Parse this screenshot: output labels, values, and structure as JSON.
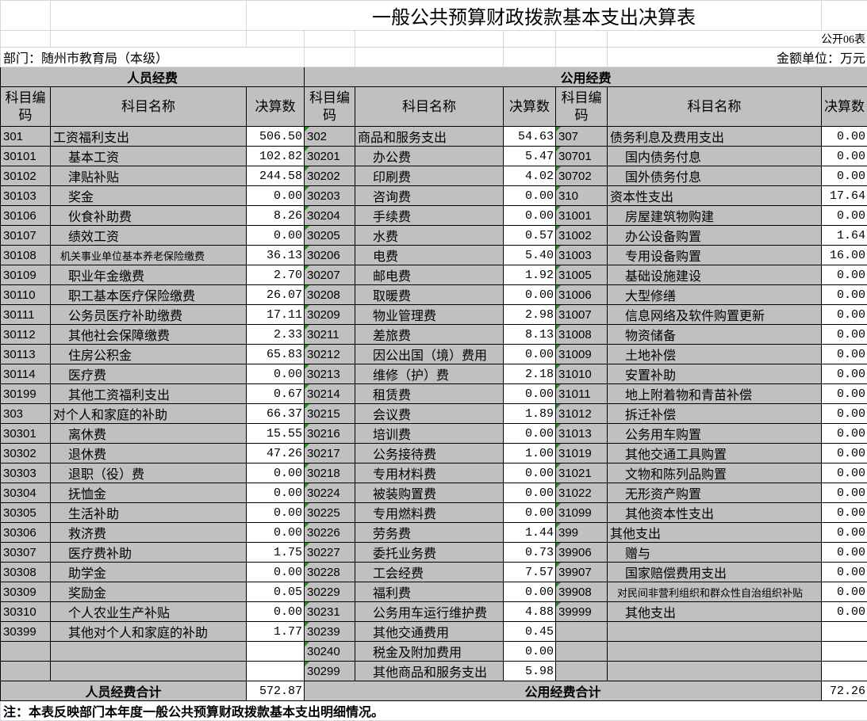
{
  "title": "一般公共预算财政拨款基本支出决算表",
  "form_no": "公开06表",
  "department": "部门：随州市教育局（本级）",
  "unit": "金额单位：万元",
  "sections": {
    "personnel": "人员经费",
    "public": "公用经费"
  },
  "headers": {
    "code": "科目编码",
    "name": "科目名称",
    "amount": "决算数"
  },
  "rows": [
    [
      "301",
      "工资福利支出",
      "506.50",
      "302",
      "商品和服务支出",
      "54.63",
      "307",
      "债务利息及费用支出",
      "0.00"
    ],
    [
      "30101",
      "基本工资",
      "102.82",
      "30201",
      "办公费",
      "5.47",
      "30701",
      "国内债务付息",
      "0.00"
    ],
    [
      "30102",
      "津贴补贴",
      "244.58",
      "30202",
      "印刷费",
      "4.02",
      "30702",
      "国外债务付息",
      "0.00"
    ],
    [
      "30103",
      "奖金",
      "0.00",
      "30203",
      "咨询费",
      "0.00",
      "310",
      "资本性支出",
      "17.64"
    ],
    [
      "30106",
      "伙食补助费",
      "8.26",
      "30204",
      "手续费",
      "0.00",
      "31001",
      "房屋建筑物购建",
      "0.00"
    ],
    [
      "30107",
      "绩效工资",
      "0.00",
      "30205",
      "水费",
      "0.57",
      "31002",
      "办公设备购置",
      "1.64"
    ],
    [
      "30108",
      "机关事业单位基本养老保险缴费",
      "36.13",
      "30206",
      "电费",
      "5.40",
      "31003",
      "专用设备购置",
      "16.00"
    ],
    [
      "30109",
      "职业年金缴费",
      "2.70",
      "30207",
      "邮电费",
      "1.92",
      "31005",
      "基础设施建设",
      "0.00"
    ],
    [
      "30110",
      "职工基本医疗保险缴费",
      "26.07",
      "30208",
      "取暖费",
      "0.00",
      "31006",
      "大型修缮",
      "0.00"
    ],
    [
      "30111",
      "公务员医疗补助缴费",
      "17.11",
      "30209",
      "物业管理费",
      "2.98",
      "31007",
      "信息网络及软件购置更新",
      "0.00"
    ],
    [
      "30112",
      "其他社会保障缴费",
      "2.33",
      "30211",
      "差旅费",
      "8.13",
      "31008",
      "物资储备",
      "0.00"
    ],
    [
      "30113",
      "住房公积金",
      "65.83",
      "30212",
      "因公出国（境）费用",
      "0.00",
      "31009",
      "土地补偿",
      "0.00"
    ],
    [
      "30114",
      "医疗费",
      "0.00",
      "30213",
      "维修（护）费",
      "2.18",
      "31010",
      "安置补助",
      "0.00"
    ],
    [
      "30199",
      "其他工资福利支出",
      "0.67",
      "30214",
      "租赁费",
      "0.00",
      "31011",
      "地上附着物和青苗补偿",
      "0.00"
    ],
    [
      "303",
      "对个人和家庭的补助",
      "66.37",
      "30215",
      "会议费",
      "1.89",
      "31012",
      "拆迁补偿",
      "0.00"
    ],
    [
      "30301",
      "离休费",
      "15.55",
      "30216",
      "培训费",
      "0.00",
      "31013",
      "公务用车购置",
      "0.00"
    ],
    [
      "30302",
      "退休费",
      "47.26",
      "30217",
      "公务接待费",
      "1.00",
      "31019",
      "其他交通工具购置",
      "0.00"
    ],
    [
      "30303",
      "退职（役）费",
      "0.00",
      "30218",
      "专用材料费",
      "0.00",
      "31021",
      "文物和陈列品购置",
      "0.00"
    ],
    [
      "30304",
      "抚恤金",
      "0.00",
      "30224",
      "被装购置费",
      "0.00",
      "31022",
      "无形资产购置",
      "0.00"
    ],
    [
      "30305",
      "生活补助",
      "0.00",
      "30225",
      "专用燃料费",
      "0.00",
      "31099",
      "其他资本性支出",
      "0.00"
    ],
    [
      "30306",
      "救济费",
      "0.00",
      "30226",
      "劳务费",
      "1.44",
      "399",
      "其他支出",
      "0.00"
    ],
    [
      "30307",
      "医疗费补助",
      "1.75",
      "30227",
      "委托业务费",
      "0.73",
      "39906",
      "赠与",
      "0.00"
    ],
    [
      "30308",
      "助学金",
      "0.00",
      "30228",
      "工会经费",
      "7.57",
      "39907",
      "国家赔偿费用支出",
      "0.00"
    ],
    [
      "30309",
      "奖励金",
      "0.05",
      "30229",
      "福利费",
      "0.00",
      "39908",
      "对民间非营利组织和群众性自治组织补贴",
      "0.00"
    ],
    [
      "30310",
      "个人农业生产补贴",
      "0.00",
      "30231",
      "公务用车运行维护费",
      "4.88",
      "39999",
      "其他支出",
      "0.00"
    ],
    [
      "30399",
      "其他对个人和家庭的补助",
      "1.77",
      "30239",
      "其他交通费用",
      "0.45",
      "",
      "",
      ""
    ],
    [
      "",
      "",
      "",
      "30240",
      "税金及附加费用",
      "0.00",
      "",
      "",
      ""
    ],
    [
      "",
      "",
      "",
      "30299",
      "其他商品和服务支出",
      "5.98",
      "",
      "",
      ""
    ]
  ],
  "totals": {
    "personnel_label": "人员经费合计",
    "personnel_value": "572.87",
    "public_label": "公用经费合计",
    "public_value": "72.26"
  },
  "note": "注：本表反映部门本年度一般公共预算财政拨款基本支出明细情况。",
  "colors": {
    "cell_gray": "#c0c0c0",
    "marker_green": "#1f8a1f",
    "gridline": "#d0d7e5"
  }
}
